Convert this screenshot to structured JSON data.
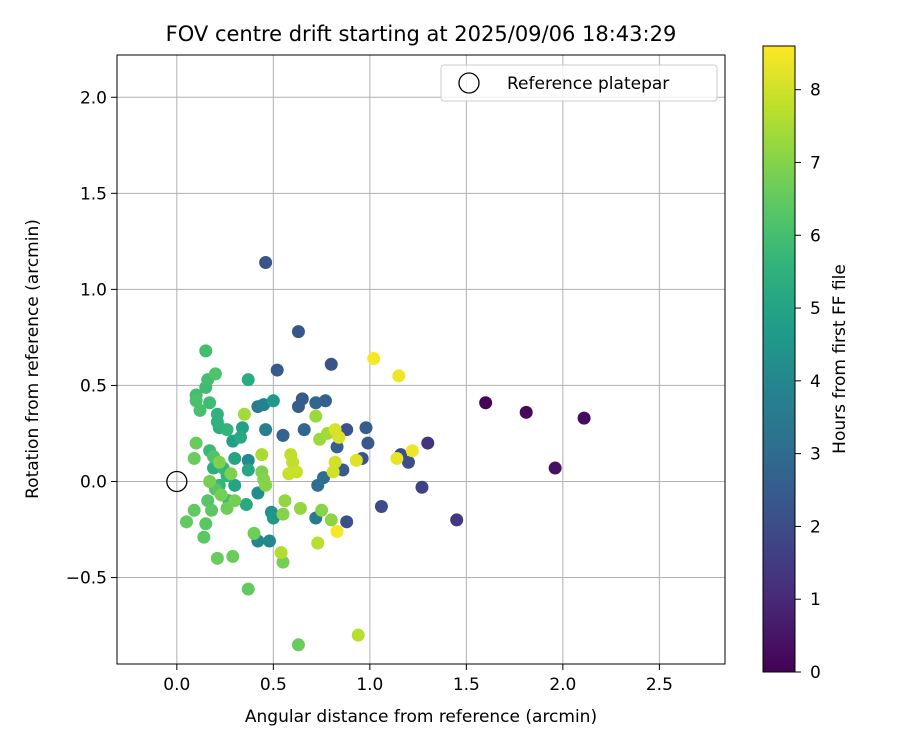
{
  "chart_data": {
    "type": "scatter",
    "title": "FOV centre drift starting at 2025/09/06 18:43:29",
    "xlabel": "Angular distance from reference (arcmin)",
    "ylabel": "Rotation from reference (arcmin)",
    "xlim": [
      -0.31,
      2.84
    ],
    "ylim": [
      -0.95,
      2.22
    ],
    "xticks": [
      0.0,
      0.5,
      1.0,
      1.5,
      2.0,
      2.5
    ],
    "xtick_labels": [
      "0.0",
      "0.5",
      "1.0",
      "1.5",
      "2.0",
      "2.5"
    ],
    "yticks": [
      -0.5,
      0.0,
      0.5,
      1.0,
      1.5,
      2.0
    ],
    "ytick_labels": [
      "−0.5",
      "0.0",
      "0.5",
      "1.0",
      "1.5",
      "2.0"
    ],
    "grid": true,
    "legend": {
      "position": "top-right",
      "entries": [
        "Reference platepar"
      ]
    },
    "reference_point": {
      "x": 0.0,
      "y": 0.0,
      "label": "Reference platepar"
    },
    "colorbar": {
      "label": "Hours from first FF file",
      "range": [
        0,
        8.6
      ],
      "ticks": [
        0,
        1,
        2,
        3,
        4,
        5,
        6,
        7,
        8
      ],
      "tick_labels": [
        "0",
        "1",
        "2",
        "3",
        "4",
        "5",
        "6",
        "7",
        "8"
      ],
      "colormap": "viridis"
    },
    "points": [
      {
        "x": 1.6,
        "y": 0.41,
        "h": 0.1
      },
      {
        "x": 1.81,
        "y": 0.36,
        "h": 0.2
      },
      {
        "x": 2.11,
        "y": 0.33,
        "h": 0.3
      },
      {
        "x": 1.96,
        "y": 0.07,
        "h": 0.4
      },
      {
        "x": 1.3,
        "y": 0.2,
        "h": 1.3
      },
      {
        "x": 1.45,
        "y": -0.2,
        "h": 1.4
      },
      {
        "x": 1.27,
        "y": -0.03,
        "h": 1.7
      },
      {
        "x": 1.06,
        "y": -0.13,
        "h": 1.9
      },
      {
        "x": 1.16,
        "y": 0.14,
        "h": 2.0
      },
      {
        "x": 1.2,
        "y": 0.1,
        "h": 2.0
      },
      {
        "x": 0.88,
        "y": -0.21,
        "h": 2.1
      },
      {
        "x": 0.88,
        "y": 0.27,
        "h": 2.2
      },
      {
        "x": 0.96,
        "y": 0.12,
        "h": 2.3
      },
      {
        "x": 0.99,
        "y": 0.2,
        "h": 2.4
      },
      {
        "x": 0.98,
        "y": 0.28,
        "h": 2.5
      },
      {
        "x": 0.86,
        "y": 0.06,
        "h": 2.5
      },
      {
        "x": 0.8,
        "y": 0.61,
        "h": 2.2
      },
      {
        "x": 0.83,
        "y": 0.18,
        "h": 2.6
      },
      {
        "x": 0.77,
        "y": 0.42,
        "h": 2.7
      },
      {
        "x": 0.72,
        "y": 0.41,
        "h": 2.8
      },
      {
        "x": 0.63,
        "y": 0.78,
        "h": 2.3
      },
      {
        "x": 0.46,
        "y": 1.14,
        "h": 2.3
      },
      {
        "x": 0.52,
        "y": 0.58,
        "h": 2.4
      },
      {
        "x": 0.65,
        "y": 0.43,
        "h": 2.5
      },
      {
        "x": 0.63,
        "y": 0.39,
        "h": 2.5
      },
      {
        "x": 0.55,
        "y": 0.24,
        "h": 2.7
      },
      {
        "x": 0.66,
        "y": 0.27,
        "h": 2.8
      },
      {
        "x": 0.76,
        "y": 0.02,
        "h": 3.0
      },
      {
        "x": 0.73,
        "y": -0.02,
        "h": 3.1
      },
      {
        "x": 0.72,
        "y": -0.19,
        "h": 3.5
      },
      {
        "x": 0.42,
        "y": 0.39,
        "h": 3.6
      },
      {
        "x": 0.46,
        "y": 0.27,
        "h": 3.7
      },
      {
        "x": 0.45,
        "y": 0.4,
        "h": 3.8
      },
      {
        "x": 0.48,
        "y": -0.31,
        "h": 4.0
      },
      {
        "x": 0.42,
        "y": -0.31,
        "h": 4.0
      },
      {
        "x": 0.37,
        "y": 0.11,
        "h": 4.1
      },
      {
        "x": 0.42,
        "y": -0.06,
        "h": 4.2
      },
      {
        "x": 0.49,
        "y": -0.16,
        "h": 4.3
      },
      {
        "x": 0.5,
        "y": -0.19,
        "h": 4.5
      },
      {
        "x": 0.5,
        "y": 0.42,
        "h": 4.6
      },
      {
        "x": 0.29,
        "y": 0.21,
        "h": 4.8
      },
      {
        "x": 0.34,
        "y": 0.28,
        "h": 4.9
      },
      {
        "x": 0.3,
        "y": -0.02,
        "h": 5.0
      },
      {
        "x": 0.3,
        "y": 0.12,
        "h": 5.0
      },
      {
        "x": 0.37,
        "y": 0.06,
        "h": 5.1
      },
      {
        "x": 0.36,
        "y": -0.12,
        "h": 5.2
      },
      {
        "x": 0.33,
        "y": 0.23,
        "h": 5.2
      },
      {
        "x": 0.37,
        "y": 0.53,
        "h": 5.3
      },
      {
        "x": 0.19,
        "y": 0.07,
        "h": 5.4
      },
      {
        "x": 0.22,
        "y": 0.28,
        "h": 5.4
      },
      {
        "x": 0.21,
        "y": 0.31,
        "h": 5.5
      },
      {
        "x": 0.21,
        "y": 0.35,
        "h": 5.5
      },
      {
        "x": 0.26,
        "y": 0.27,
        "h": 5.6
      },
      {
        "x": 0.26,
        "y": 0.03,
        "h": 5.6
      },
      {
        "x": 0.24,
        "y": 0.07,
        "h": 5.7
      },
      {
        "x": 0.22,
        "y": -0.02,
        "h": 5.7
      },
      {
        "x": 0.27,
        "y": -0.1,
        "h": 5.8
      },
      {
        "x": 0.17,
        "y": 0.16,
        "h": 5.8
      },
      {
        "x": 0.17,
        "y": 0.41,
        "h": 5.9
      },
      {
        "x": 0.15,
        "y": 0.49,
        "h": 5.9
      },
      {
        "x": 0.16,
        "y": 0.53,
        "h": 6.0
      },
      {
        "x": 0.15,
        "y": 0.68,
        "h": 6.0
      },
      {
        "x": 0.1,
        "y": 0.45,
        "h": 6.0
      },
      {
        "x": 0.1,
        "y": 0.42,
        "h": 6.1
      },
      {
        "x": 0.12,
        "y": 0.37,
        "h": 6.1
      },
      {
        "x": 0.2,
        "y": 0.56,
        "h": 6.2
      },
      {
        "x": 0.19,
        "y": 0.13,
        "h": 6.2
      },
      {
        "x": 0.2,
        "y": -0.04,
        "h": 6.3
      },
      {
        "x": 0.16,
        "y": -0.1,
        "h": 6.3
      },
      {
        "x": 0.18,
        "y": -0.15,
        "h": 6.4
      },
      {
        "x": 0.15,
        "y": -0.22,
        "h": 6.4
      },
      {
        "x": 0.14,
        "y": -0.29,
        "h": 6.4
      },
      {
        "x": 0.05,
        "y": -0.21,
        "h": 6.5
      },
      {
        "x": 0.09,
        "y": -0.15,
        "h": 6.5
      },
      {
        "x": 0.09,
        "y": 0.12,
        "h": 6.6
      },
      {
        "x": 0.1,
        "y": 0.2,
        "h": 6.6
      },
      {
        "x": 0.21,
        "y": -0.4,
        "h": 6.6
      },
      {
        "x": 0.29,
        "y": -0.39,
        "h": 6.6
      },
      {
        "x": 0.37,
        "y": -0.56,
        "h": 6.5
      },
      {
        "x": 0.4,
        "y": -0.27,
        "h": 6.7
      },
      {
        "x": 0.26,
        "y": -0.14,
        "h": 6.7
      },
      {
        "x": 0.23,
        "y": -0.07,
        "h": 6.8
      },
      {
        "x": 0.17,
        "y": 0.0,
        "h": 6.8
      },
      {
        "x": 0.3,
        "y": -0.1,
        "h": 6.8
      },
      {
        "x": 0.22,
        "y": 0.1,
        "h": 6.9
      },
      {
        "x": 0.28,
        "y": 0.04,
        "h": 6.9
      },
      {
        "x": 0.44,
        "y": 0.05,
        "h": 6.9
      },
      {
        "x": 0.45,
        "y": 0.01,
        "h": 7.0
      },
      {
        "x": 0.46,
        "y": -0.02,
        "h": 7.0
      },
      {
        "x": 0.55,
        "y": -0.42,
        "h": 6.8
      },
      {
        "x": 0.63,
        "y": -0.85,
        "h": 6.6
      },
      {
        "x": 0.55,
        "y": -0.17,
        "h": 7.0
      },
      {
        "x": 0.75,
        "y": -0.15,
        "h": 7.0
      },
      {
        "x": 0.8,
        "y": -0.2,
        "h": 7.1
      },
      {
        "x": 0.64,
        "y": -0.14,
        "h": 7.2
      },
      {
        "x": 0.56,
        "y": -0.1,
        "h": 7.2
      },
      {
        "x": 0.72,
        "y": 0.34,
        "h": 7.3
      },
      {
        "x": 0.74,
        "y": 0.22,
        "h": 7.3
      },
      {
        "x": 0.78,
        "y": 0.25,
        "h": 7.4
      },
      {
        "x": 0.35,
        "y": 0.35,
        "h": 7.4
      },
      {
        "x": 0.44,
        "y": 0.14,
        "h": 7.5
      },
      {
        "x": 0.54,
        "y": -0.37,
        "h": 7.6
      },
      {
        "x": 0.73,
        "y": -0.32,
        "h": 7.7
      },
      {
        "x": 0.94,
        "y": -0.8,
        "h": 7.7
      },
      {
        "x": 0.59,
        "y": 0.14,
        "h": 7.8
      },
      {
        "x": 0.6,
        "y": 0.1,
        "h": 7.8
      },
      {
        "x": 0.62,
        "y": 0.05,
        "h": 7.9
      },
      {
        "x": 0.58,
        "y": 0.04,
        "h": 7.9
      },
      {
        "x": 0.81,
        "y": 0.05,
        "h": 8.0
      },
      {
        "x": 0.82,
        "y": 0.1,
        "h": 8.0
      },
      {
        "x": 0.84,
        "y": 0.23,
        "h": 8.1
      },
      {
        "x": 0.82,
        "y": 0.27,
        "h": 8.1
      },
      {
        "x": 0.93,
        "y": 0.11,
        "h": 8.2
      },
      {
        "x": 1.14,
        "y": 0.12,
        "h": 8.3
      },
      {
        "x": 1.22,
        "y": 0.16,
        "h": 8.4
      },
      {
        "x": 1.15,
        "y": 0.55,
        "h": 8.4
      },
      {
        "x": 1.02,
        "y": 0.64,
        "h": 8.5
      },
      {
        "x": 0.83,
        "y": -0.26,
        "h": 8.5
      }
    ]
  }
}
